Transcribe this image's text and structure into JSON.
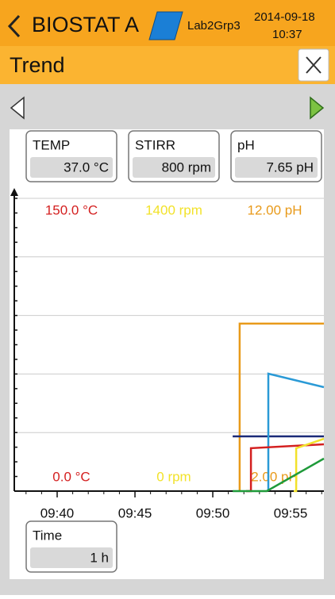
{
  "header": {
    "title": "BIOSTAT A",
    "user": "Lab2Grp3",
    "date": "2014-09-18",
    "time": "10:37"
  },
  "panel": {
    "title": "Trend"
  },
  "readouts": [
    {
      "label": "TEMP",
      "value": "37.0 °C"
    },
    {
      "label": "STIRR",
      "value": "800 rpm"
    },
    {
      "label": "pH",
      "value": "7.65 pH"
    }
  ],
  "time_window": {
    "label": "Time",
    "value": "1 h"
  },
  "chart_data": {
    "type": "line",
    "xlim": [
      37.245,
      57.14
    ],
    "xticks": [
      {
        "value": 40,
        "label": "09:40"
      },
      {
        "value": 45,
        "label": "09:45"
      },
      {
        "value": 50,
        "label": "09:50"
      },
      {
        "value": 55,
        "label": "09:55"
      }
    ],
    "yscales": [
      {
        "color": "#d42020",
        "ylim": [
          {
            "value": 0,
            "label": "0.0 °C"
          },
          {
            "value": 150,
            "label": "150.0 °C"
          }
        ]
      },
      {
        "color": "#f2e22a",
        "ylim": [
          {
            "value": 0,
            "label": "0 rpm"
          },
          {
            "value": 1400,
            "label": "1400 rpm"
          }
        ]
      },
      {
        "color": "#e89a1a",
        "ylim": [
          {
            "value": 2,
            "label": "2.00 pH"
          },
          {
            "value": 12,
            "label": "12.00 pH"
          }
        ]
      }
    ],
    "series": [
      {
        "color": "#e89a1a",
        "scale": 2,
        "x": [
          51.73,
          51.73,
          57.14
        ],
        "y": [
          2,
          7.72,
          7.72
        ]
      },
      {
        "color": "#1b2a78",
        "scale": 2,
        "x": [
          51.28,
          57.14
        ],
        "y": [
          3.87,
          3.87
        ]
      },
      {
        "color": "#2a9ad6",
        "scale": 2,
        "x": [
          53.57,
          53.57,
          57.14
        ],
        "y": [
          2,
          6.01,
          5.55
        ]
      },
      {
        "color": "#d42020",
        "scale": 0,
        "x": [
          52.14,
          52.45,
          52.45,
          57.14
        ],
        "y": [
          0,
          0,
          22.0,
          24.0
        ]
      },
      {
        "color": "#f2e22a",
        "scale": 1,
        "x": [
          55.2,
          55.36,
          55.36,
          57.14
        ],
        "y": [
          0,
          0,
          205,
          250
        ]
      },
      {
        "color": "#1f9a3a",
        "scale": 2,
        "x": [
          51.28,
          53.47,
          57.14
        ],
        "y": [
          2,
          2,
          3.11
        ]
      }
    ]
  }
}
